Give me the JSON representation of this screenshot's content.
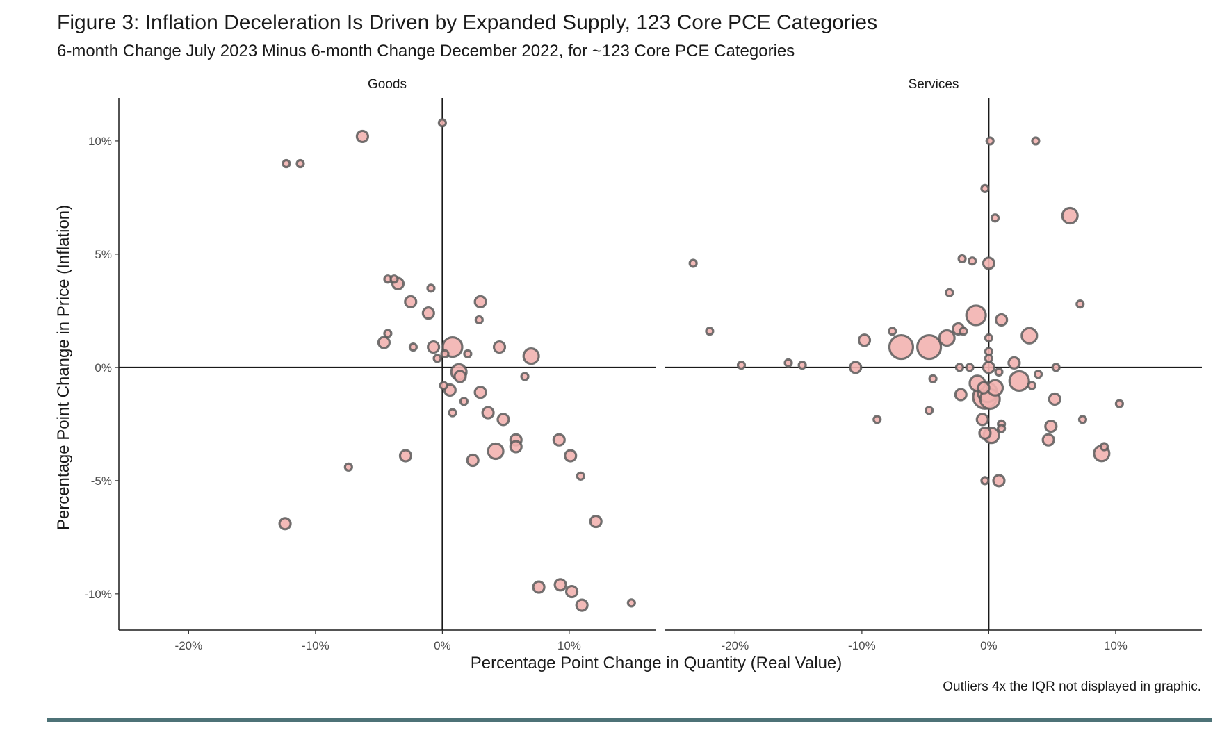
{
  "chart_data": {
    "type": "scatter",
    "title": "Figure 3: Inflation Deceleration Is Driven by Expanded Supply, 123 Core PCE Categories",
    "subtitle": "6-month Change July 2023 Minus 6-month Change December 2022, for ~123 Core PCE Categories",
    "xlabel": "Percentage Point Change in Quantity (Real Value)",
    "ylabel": "Percentage Point Change in Price (Inflation)",
    "caption": "Outliers 4x the IQR not displayed in graphic.",
    "xlim": [
      -25.5,
      16.8
    ],
    "ylim": [
      -11.6,
      11.9
    ],
    "x_ticks": [
      -20,
      -10,
      0,
      10
    ],
    "x_tick_labels": [
      "-20%",
      "-10%",
      "0%",
      "10%"
    ],
    "y_ticks": [
      10,
      5,
      0,
      -5,
      -10
    ],
    "y_tick_labels": [
      "10%",
      "5%",
      "0%",
      "-5%",
      "-10%"
    ],
    "grid": false,
    "marker_fill": "#f2b3b0",
    "marker_edge": "#5a5a5a",
    "panels": [
      {
        "name": "Goods",
        "points": [
          {
            "x": 0.0,
            "y": 10.8,
            "s": 1
          },
          {
            "x": -6.3,
            "y": 10.2,
            "s": 2
          },
          {
            "x": -12.3,
            "y": 9.0,
            "s": 1
          },
          {
            "x": -11.2,
            "y": 9.0,
            "s": 1
          },
          {
            "x": -4.3,
            "y": 3.9,
            "s": 1
          },
          {
            "x": -3.8,
            "y": 3.9,
            "s": 1
          },
          {
            "x": -3.5,
            "y": 3.7,
            "s": 2
          },
          {
            "x": -0.9,
            "y": 3.5,
            "s": 1
          },
          {
            "x": -2.5,
            "y": 2.9,
            "s": 2
          },
          {
            "x": 3.0,
            "y": 2.9,
            "s": 2
          },
          {
            "x": -1.1,
            "y": 2.4,
            "s": 2
          },
          {
            "x": 2.9,
            "y": 2.1,
            "s": 1
          },
          {
            "x": -4.3,
            "y": 1.5,
            "s": 1
          },
          {
            "x": -4.6,
            "y": 1.1,
            "s": 2
          },
          {
            "x": -2.3,
            "y": 0.9,
            "s": 1
          },
          {
            "x": -0.7,
            "y": 0.9,
            "s": 2
          },
          {
            "x": 0.8,
            "y": 0.9,
            "s": 4
          },
          {
            "x": 4.5,
            "y": 0.9,
            "s": 2
          },
          {
            "x": 0.2,
            "y": 0.6,
            "s": 1
          },
          {
            "x": 2.0,
            "y": 0.6,
            "s": 1
          },
          {
            "x": 7.0,
            "y": 0.5,
            "s": 3
          },
          {
            "x": -0.4,
            "y": 0.4,
            "s": 1
          },
          {
            "x": 1.3,
            "y": -0.2,
            "s": 3
          },
          {
            "x": 1.4,
            "y": -0.4,
            "s": 2
          },
          {
            "x": 6.5,
            "y": -0.4,
            "s": 1
          },
          {
            "x": 0.1,
            "y": -0.8,
            "s": 1
          },
          {
            "x": 0.6,
            "y": -1.0,
            "s": 2
          },
          {
            "x": 3.0,
            "y": -1.1,
            "s": 2
          },
          {
            "x": 1.7,
            "y": -1.5,
            "s": 1
          },
          {
            "x": 0.8,
            "y": -2.0,
            "s": 1
          },
          {
            "x": 3.6,
            "y": -2.0,
            "s": 2
          },
          {
            "x": 4.8,
            "y": -2.3,
            "s": 2
          },
          {
            "x": 5.8,
            "y": -3.2,
            "s": 2
          },
          {
            "x": 5.8,
            "y": -3.5,
            "s": 2
          },
          {
            "x": 9.2,
            "y": -3.2,
            "s": 2
          },
          {
            "x": 4.2,
            "y": -3.7,
            "s": 3
          },
          {
            "x": -2.9,
            "y": -3.9,
            "s": 2
          },
          {
            "x": 2.4,
            "y": -4.1,
            "s": 2
          },
          {
            "x": 10.1,
            "y": -3.9,
            "s": 2
          },
          {
            "x": -7.4,
            "y": -4.4,
            "s": 1
          },
          {
            "x": 10.9,
            "y": -4.8,
            "s": 1
          },
          {
            "x": -12.4,
            "y": -6.9,
            "s": 2
          },
          {
            "x": 12.1,
            "y": -6.8,
            "s": 2
          },
          {
            "x": 7.6,
            "y": -9.7,
            "s": 2
          },
          {
            "x": 9.3,
            "y": -9.6,
            "s": 2
          },
          {
            "x": 10.2,
            "y": -9.9,
            "s": 2
          },
          {
            "x": 11.0,
            "y": -10.5,
            "s": 2
          },
          {
            "x": 14.9,
            "y": -10.4,
            "s": 1
          }
        ]
      },
      {
        "name": "Services",
        "points": [
          {
            "x": 0.1,
            "y": 10.0,
            "s": 1
          },
          {
            "x": 3.7,
            "y": 10.0,
            "s": 1
          },
          {
            "x": -0.3,
            "y": 7.9,
            "s": 1
          },
          {
            "x": 0.5,
            "y": 6.6,
            "s": 1
          },
          {
            "x": 6.4,
            "y": 6.7,
            "s": 3
          },
          {
            "x": -2.1,
            "y": 4.8,
            "s": 1
          },
          {
            "x": -1.3,
            "y": 4.7,
            "s": 1
          },
          {
            "x": 0.0,
            "y": 4.6,
            "s": 2
          },
          {
            "x": -23.3,
            "y": 4.6,
            "s": 1
          },
          {
            "x": -3.1,
            "y": 3.3,
            "s": 1
          },
          {
            "x": 7.2,
            "y": 2.8,
            "s": 1
          },
          {
            "x": -1.0,
            "y": 2.3,
            "s": 4
          },
          {
            "x": 1.0,
            "y": 2.1,
            "s": 2
          },
          {
            "x": -2.4,
            "y": 1.7,
            "s": 2
          },
          {
            "x": -2.0,
            "y": 1.6,
            "s": 1
          },
          {
            "x": -22.0,
            "y": 1.6,
            "s": 1
          },
          {
            "x": -7.6,
            "y": 1.6,
            "s": 1
          },
          {
            "x": -3.3,
            "y": 1.3,
            "s": 3
          },
          {
            "x": -9.8,
            "y": 1.2,
            "s": 2
          },
          {
            "x": 0.0,
            "y": 1.3,
            "s": 1
          },
          {
            "x": 3.2,
            "y": 1.4,
            "s": 3
          },
          {
            "x": -6.9,
            "y": 0.9,
            "s": 5
          },
          {
            "x": -4.7,
            "y": 0.9,
            "s": 5
          },
          {
            "x": 0.0,
            "y": 0.7,
            "s": 1
          },
          {
            "x": 0.0,
            "y": 0.4,
            "s": 1
          },
          {
            "x": -19.5,
            "y": 0.1,
            "s": 1
          },
          {
            "x": -15.8,
            "y": 0.2,
            "s": 1
          },
          {
            "x": -14.7,
            "y": 0.1,
            "s": 1
          },
          {
            "x": -10.5,
            "y": 0.0,
            "s": 2
          },
          {
            "x": 2.0,
            "y": 0.2,
            "s": 2
          },
          {
            "x": -2.3,
            "y": 0.0,
            "s": 1
          },
          {
            "x": -1.5,
            "y": 0.0,
            "s": 1
          },
          {
            "x": 0.0,
            "y": 0.0,
            "s": 2
          },
          {
            "x": 5.3,
            "y": 0.0,
            "s": 1
          },
          {
            "x": 0.8,
            "y": -0.2,
            "s": 1
          },
          {
            "x": 3.9,
            "y": -0.3,
            "s": 1
          },
          {
            "x": -4.4,
            "y": -0.5,
            "s": 1
          },
          {
            "x": -0.9,
            "y": -0.7,
            "s": 3
          },
          {
            "x": 2.4,
            "y": -0.6,
            "s": 4
          },
          {
            "x": 3.4,
            "y": -0.8,
            "s": 1
          },
          {
            "x": -0.4,
            "y": -0.9,
            "s": 2
          },
          {
            "x": 0.5,
            "y": -0.9,
            "s": 3
          },
          {
            "x": -0.1,
            "y": -1.1,
            "s": 4
          },
          {
            "x": -2.2,
            "y": -1.2,
            "s": 2
          },
          {
            "x": -0.3,
            "y": -1.3,
            "s": 5
          },
          {
            "x": 0.1,
            "y": -1.4,
            "s": 4
          },
          {
            "x": 5.2,
            "y": -1.4,
            "s": 2
          },
          {
            "x": 10.3,
            "y": -1.6,
            "s": 1
          },
          {
            "x": -4.7,
            "y": -1.9,
            "s": 1
          },
          {
            "x": -0.5,
            "y": -2.3,
            "s": 2
          },
          {
            "x": -8.8,
            "y": -2.3,
            "s": 1
          },
          {
            "x": 7.4,
            "y": -2.3,
            "s": 1
          },
          {
            "x": 1.0,
            "y": -2.5,
            "s": 1
          },
          {
            "x": 1.0,
            "y": -2.7,
            "s": 1
          },
          {
            "x": 4.9,
            "y": -2.6,
            "s": 2
          },
          {
            "x": -0.3,
            "y": -2.9,
            "s": 2
          },
          {
            "x": 0.2,
            "y": -3.0,
            "s": 3
          },
          {
            "x": 4.7,
            "y": -3.2,
            "s": 2
          },
          {
            "x": 9.1,
            "y": -3.5,
            "s": 1
          },
          {
            "x": 8.9,
            "y": -3.8,
            "s": 3
          },
          {
            "x": -0.3,
            "y": -5.0,
            "s": 1
          },
          {
            "x": 0.8,
            "y": -5.0,
            "s": 2
          }
        ]
      }
    ]
  }
}
